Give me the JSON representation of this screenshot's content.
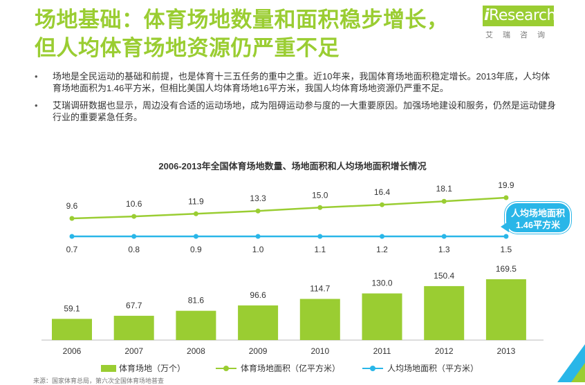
{
  "header": {
    "title_line1": "场地基础：体育场地数量和面积稳步增长，",
    "title_line2": "但人均体育场地资源仍严重不足",
    "logo_text": "Research",
    "logo_i": "i",
    "logo_cn": "艾瑞咨询"
  },
  "bullets": [
    "场地是全民运动的基础和前提，也是体育十三五任务的重中之重。近10年来，我国体育场地面积稳定增长。2013年底，人均体育场地面积为1.46平方米，但相比美国人均体育场地16平方米，我国人均体育场地资源仍严重不足。",
    "艾瑞调研数据也显示，周边没有合适的运动场地，成为阻碍运动参与度的一大重要原因。加强场地建设和服务，仍然是运动健身行业的重要紧急任务。"
  ],
  "callout": {
    "line1": "人均场地面积",
    "line2": "1.46平方米"
  },
  "source": "来源：国家体育总局，第六次全国体育场地普查",
  "colors": {
    "green": "#9ACD32",
    "blue": "#29B6E8"
  },
  "chart_data": {
    "type": "bar+line",
    "title": "2006-2013年全国体育场地数量、场地面积和人均场地面积增长情况",
    "categories": [
      "2006",
      "2007",
      "2008",
      "2009",
      "2010",
      "2011",
      "2012",
      "2013"
    ],
    "series": [
      {
        "name": "体育场地（万个）",
        "type": "bar",
        "values": [
          59.1,
          67.7,
          81.6,
          96.6,
          114.7,
          130.0,
          150.4,
          169.5
        ]
      },
      {
        "name": "体育场地面积（亿平方米）",
        "type": "line",
        "values": [
          9.6,
          10.6,
          11.9,
          13.3,
          15.0,
          16.4,
          18.1,
          19.9
        ]
      },
      {
        "name": "人均场地面积（平方米）",
        "type": "line",
        "values": [
          0.7,
          0.8,
          0.9,
          1.0,
          1.1,
          1.2,
          1.3,
          1.5
        ]
      }
    ],
    "legend_position": "bottom"
  }
}
